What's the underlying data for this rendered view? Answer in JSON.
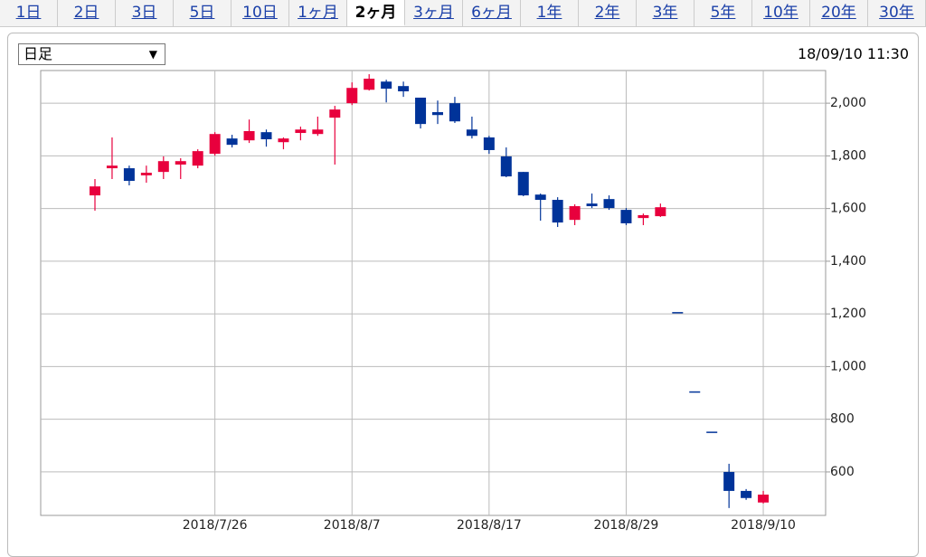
{
  "tabs": [
    {
      "label": "1日"
    },
    {
      "label": "2日"
    },
    {
      "label": "3日"
    },
    {
      "label": "5日"
    },
    {
      "label": "10日"
    },
    {
      "label": "1ヶ月"
    },
    {
      "label": "2ヶ月",
      "selected": true
    },
    {
      "label": "3ヶ月"
    },
    {
      "label": "6ヶ月"
    },
    {
      "label": "1年"
    },
    {
      "label": "2年"
    },
    {
      "label": "3年"
    },
    {
      "label": "5年"
    },
    {
      "label": "10年"
    },
    {
      "label": "20年"
    },
    {
      "label": "30年"
    }
  ],
  "dropdown": "日足",
  "timestamp": "18/09/10 11:30",
  "chart_data": {
    "type": "candlestick",
    "categories": [
      null,
      null,
      null,
      null,
      null,
      null,
      null,
      "2018/7/26",
      null,
      null,
      null,
      null,
      null,
      null,
      null,
      "2018/8/7",
      null,
      null,
      null,
      null,
      null,
      null,
      null,
      "2018/8/17",
      null,
      null,
      null,
      null,
      null,
      null,
      null,
      "2018/8/29",
      null,
      null,
      null,
      null,
      null,
      null,
      null,
      "2018/9/10"
    ],
    "open": [
      1650,
      1753,
      1753,
      1726,
      1739,
      1767,
      1763,
      1808,
      1866,
      1859,
      1890,
      1852,
      1887,
      1883,
      1945,
      2000,
      2051,
      2082,
      2065,
      2021,
      1966,
      2000,
      1900,
      1870,
      1798,
      1739,
      1653,
      1633,
      1557,
      1619,
      1636,
      1595,
      1564,
      1571,
      1207,
      906,
      753,
      600,
      528,
      484
    ],
    "high": [
      1712,
      1870,
      1763,
      1763,
      1798,
      1791,
      1825,
      1890,
      1880,
      1938,
      1900,
      1870,
      1911,
      1949,
      1990,
      2079,
      2110,
      2089,
      2082,
      2021,
      2010,
      2024,
      1949,
      1876,
      1832,
      1739,
      1657,
      1643,
      1616,
      1657,
      1650,
      1602,
      1581,
      1619,
      1207,
      906,
      753,
      631,
      535,
      528
    ],
    "low": [
      1592,
      1712,
      1688,
      1698,
      1712,
      1712,
      1753,
      1801,
      1832,
      1849,
      1835,
      1825,
      1859,
      1876,
      1767,
      1993,
      2048,
      2003,
      2024,
      1904,
      1921,
      1925,
      1866,
      1808,
      1719,
      1647,
      1554,
      1530,
      1537,
      1602,
      1595,
      1537,
      1537,
      1568,
      1207,
      906,
      753,
      463,
      494,
      480
    ],
    "close": [
      1684,
      1763,
      1705,
      1736,
      1780,
      1780,
      1818,
      1883,
      1842,
      1894,
      1863,
      1866,
      1900,
      1900,
      1976,
      2058,
      2093,
      2055,
      2045,
      1921,
      1955,
      1931,
      1876,
      1822,
      1722,
      1650,
      1633,
      1547,
      1609,
      1609,
      1602,
      1544,
      1575,
      1605,
      1207,
      906,
      753,
      528,
      501,
      514
    ],
    "up_color": "#e8003d",
    "down_color": "#003399",
    "ylim": [
      435,
      2124
    ],
    "yticks": [
      {
        "value": 600,
        "label": "600"
      },
      {
        "value": 800,
        "label": "800"
      },
      {
        "value": 1000,
        "label": "1,000"
      },
      {
        "value": 1200,
        "label": "1,200"
      },
      {
        "value": 1400,
        "label": "1,400"
      },
      {
        "value": 1600,
        "label": "1,600"
      },
      {
        "value": 1800,
        "label": "1,800"
      },
      {
        "value": 2000,
        "label": "2,000"
      }
    ],
    "grid": true
  }
}
